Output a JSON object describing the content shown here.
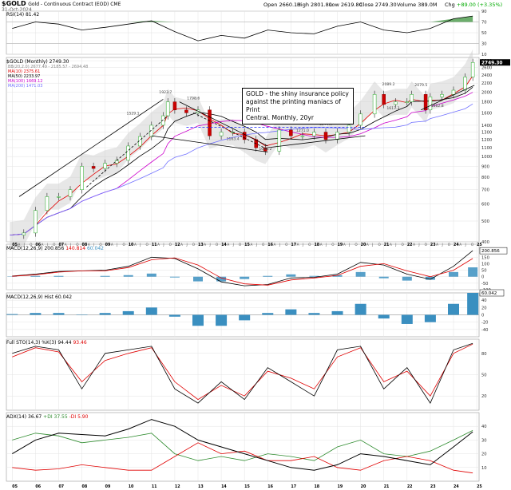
{
  "header": {
    "symbol": "$GOLD",
    "description": "Gold - Continuous Contract (EOD) CME",
    "date": "31-Oct-2024",
    "open_label": "Open",
    "open": "2660.10",
    "high_label": "High",
    "high": "2801.80",
    "low_label": "Low",
    "low": "2619.80",
    "close_label": "Close",
    "close": "2749.30",
    "volume_label": "Volume",
    "volume": "389.0M",
    "chg_label": "Chg",
    "chg": "+89.00 (+3.35%)"
  },
  "annotation": {
    "line1": "GOLD - the shiny insurance policy",
    "line2": "against the printing maniacs of Print",
    "line3": "Central. Monthly, 20yr"
  },
  "panels": {
    "rsi": {
      "label": "RSI(14) 81.42",
      "color": "#000000",
      "fill_color": "#2e8b2e"
    },
    "price": {
      "label": "$GOLD (Monthly) 2749.30",
      "legend": [
        {
          "text": "BB(20,2.0) 2677.49 - 2185.57 - 2694.48",
          "color": "#888888"
        },
        {
          "text": "MA(10) 2375.61",
          "color": "#e00000"
        },
        {
          "text": "MA(50) 2233.97",
          "color": "#000000"
        },
        {
          "text": "MA(100) 1669.12",
          "color": "#cc00cc"
        },
        {
          "text": "MA(200) 1471.03",
          "color": "#7070ff"
        }
      ],
      "price_tag": "2749.30"
    },
    "macd1": {
      "label": "MACD(12,26,9) 200.856",
      "signal_value": "140.814",
      "hist_value": "60.042",
      "right_tag": "200.856"
    },
    "macd2": {
      "label": "MACD(12,26,9) Hist 60.042",
      "right_tag": "60.042"
    },
    "sto": {
      "label": "Full STO(14,3) %K(3) 94.44",
      "d_value": "93.46"
    },
    "adx": {
      "label": "ADX(14) 36.67",
      "plus_di": "+DI 37.55",
      "minus_di": "-DI 5.90"
    }
  },
  "chart_data": [
    {
      "type": "line",
      "title": "RSI(14)",
      "ylim": [
        10,
        90
      ],
      "y_ticks": [
        "90",
        "70",
        "50",
        "30",
        "10"
      ],
      "x": [
        2005,
        2006,
        2007,
        2008,
        2009,
        2010,
        2011,
        2012,
        2013,
        2014,
        2015,
        2016,
        2017,
        2018,
        2019,
        2020,
        2021,
        2022,
        2023,
        2024,
        2024.83
      ],
      "series": [
        {
          "name": "RSI",
          "values": [
            58,
            70,
            66,
            55,
            60,
            66,
            72,
            52,
            35,
            45,
            40,
            55,
            50,
            48,
            62,
            70,
            55,
            50,
            58,
            76,
            81
          ]
        }
      ]
    },
    {
      "type": "line",
      "title": "$GOLD (Monthly)",
      "ylim": [
        400,
        2900
      ],
      "y_ticks": [
        "2800",
        "2600",
        "2400",
        "2200",
        "2000",
        "1800",
        "1600",
        "1400",
        "1300",
        "1200",
        "1100",
        "1000",
        "900",
        "800",
        "700",
        "600",
        "500",
        "400"
      ],
      "x_ticks": [
        "05",
        "06",
        "07",
        "08",
        "09",
        "10",
        "11",
        "12",
        "13",
        "14",
        "15",
        "16",
        "17",
        "18",
        "19",
        "20",
        "21",
        "22",
        "23",
        "24",
        "25"
      ],
      "x": [
        2004.9,
        2005.5,
        2006,
        2006.5,
        2007,
        2007.5,
        2008,
        2008.5,
        2009,
        2009.5,
        2010,
        2010.5,
        2011,
        2011.5,
        2011.7,
        2012,
        2012.5,
        2013,
        2013.5,
        2014,
        2014.5,
        2015,
        2015.5,
        2015.9,
        2016.5,
        2017,
        2017.5,
        2018,
        2018.5,
        2019,
        2019.5,
        2020,
        2020.6,
        2021,
        2021.5,
        2022,
        2022.2,
        2022.8,
        2023,
        2023.5,
        2024,
        2024.5,
        2024.83
      ],
      "series": [
        {
          "name": "$GOLD",
          "values": [
            430,
            440,
            560,
            650,
            650,
            700,
            900,
            880,
            930,
            960,
            1120,
            1240,
            1400,
            1550,
            1800,
            1650,
            1600,
            1650,
            1250,
            1300,
            1300,
            1200,
            1100,
            1060,
            1330,
            1250,
            1250,
            1300,
            1200,
            1300,
            1400,
            1580,
            1950,
            1750,
            1800,
            1800,
            1950,
            1650,
            1900,
            1950,
            2040,
            2350,
            2749
          ]
        }
      ],
      "annotated_levels": [
        "1923.7",
        "1798.6",
        "1529.1",
        "1377.5",
        "1163.4",
        "1046.2",
        "1271.0",
        "1366.6",
        "2089.2",
        "2079.5",
        "1617.3",
        "1662.8"
      ]
    },
    {
      "type": "line",
      "title": "MACD(12,26,9)",
      "ylim": [
        -100,
        250
      ],
      "y_ticks": [
        "200",
        "150",
        "100",
        "50",
        "0",
        "-50",
        "-100"
      ],
      "x": [
        2005,
        2006,
        2007,
        2008,
        2009,
        2010,
        2011,
        2012,
        2013,
        2014,
        2015,
        2016,
        2017,
        2018,
        2019,
        2020,
        2021,
        2022,
        2023,
        2024,
        2024.83
      ],
      "series": [
        {
          "name": "MACD",
          "values": [
            5,
            20,
            40,
            45,
            50,
            80,
            150,
            140,
            60,
            -40,
            -70,
            -60,
            -10,
            -5,
            20,
            110,
            90,
            20,
            -20,
            80,
            200
          ]
        },
        {
          "name": "Signal",
          "values": [
            3,
            15,
            35,
            45,
            45,
            70,
            130,
            145,
            90,
            -10,
            -55,
            -65,
            -25,
            -10,
            10,
            80,
            100,
            45,
            0,
            50,
            140
          ]
        }
      ]
    },
    {
      "type": "bar",
      "title": "MACD Hist",
      "ylim": [
        -60,
        60
      ],
      "y_ticks": [
        "40",
        "20",
        "0",
        "-20",
        "-40"
      ],
      "x": [
        2005,
        2006,
        2007,
        2008,
        2009,
        2010,
        2011,
        2012,
        2013,
        2014,
        2015,
        2016,
        2017,
        2018,
        2019,
        2020,
        2021,
        2022,
        2023,
        2024,
        2024.83
      ],
      "values": [
        2,
        5,
        5,
        0,
        5,
        10,
        20,
        -5,
        -30,
        -30,
        -15,
        5,
        15,
        5,
        10,
        30,
        -10,
        -25,
        -20,
        30,
        60
      ]
    },
    {
      "type": "line",
      "title": "Full STO(14,3)",
      "ylim": [
        0,
        100
      ],
      "y_ticks": [
        "80",
        "50",
        "20"
      ],
      "x": [
        2005,
        2006,
        2007,
        2008,
        2009,
        2010,
        2011,
        2012,
        2013,
        2014,
        2015,
        2016,
        2017,
        2018,
        2019,
        2020,
        2021,
        2022,
        2023,
        2024,
        2024.83
      ],
      "series": [
        {
          "name": "%K",
          "values": [
            80,
            90,
            85,
            30,
            80,
            85,
            90,
            30,
            10,
            40,
            15,
            60,
            40,
            20,
            85,
            90,
            30,
            60,
            10,
            85,
            94
          ]
        },
        {
          "name": "%D",
          "values": [
            75,
            88,
            82,
            40,
            70,
            80,
            88,
            40,
            15,
            35,
            20,
            55,
            45,
            30,
            75,
            88,
            40,
            55,
            20,
            80,
            93
          ]
        }
      ]
    },
    {
      "type": "line",
      "title": "ADX(14)",
      "ylim": [
        0,
        50
      ],
      "y_ticks": [
        "40",
        "30",
        "20",
        "10"
      ],
      "x": [
        2005,
        2006,
        2007,
        2008,
        2009,
        2010,
        2011,
        2012,
        2013,
        2014,
        2015,
        2016,
        2017,
        2018,
        2019,
        2020,
        2021,
        2022,
        2023,
        2024,
        2024.83
      ],
      "series": [
        {
          "name": "ADX",
          "values": [
            20,
            30,
            35,
            34,
            33,
            38,
            45,
            40,
            30,
            25,
            20,
            15,
            10,
            8,
            12,
            20,
            18,
            15,
            12,
            25,
            36
          ]
        },
        {
          "name": "+DI",
          "values": [
            30,
            35,
            33,
            28,
            30,
            32,
            35,
            20,
            15,
            18,
            15,
            20,
            18,
            15,
            25,
            30,
            20,
            18,
            22,
            30,
            37
          ]
        },
        {
          "name": "-DI",
          "values": [
            10,
            8,
            9,
            12,
            10,
            8,
            8,
            18,
            28,
            20,
            22,
            15,
            15,
            18,
            10,
            8,
            15,
            18,
            15,
            8,
            6
          ]
        }
      ]
    }
  ],
  "x_axis": {
    "years": [
      "05",
      "06",
      "07",
      "08",
      "09",
      "10",
      "11",
      "12",
      "13",
      "14",
      "15",
      "16",
      "17",
      "18",
      "19",
      "20",
      "21",
      "22",
      "23",
      "24",
      "25"
    ],
    "month_letters": [
      "A",
      "J",
      "O"
    ]
  }
}
